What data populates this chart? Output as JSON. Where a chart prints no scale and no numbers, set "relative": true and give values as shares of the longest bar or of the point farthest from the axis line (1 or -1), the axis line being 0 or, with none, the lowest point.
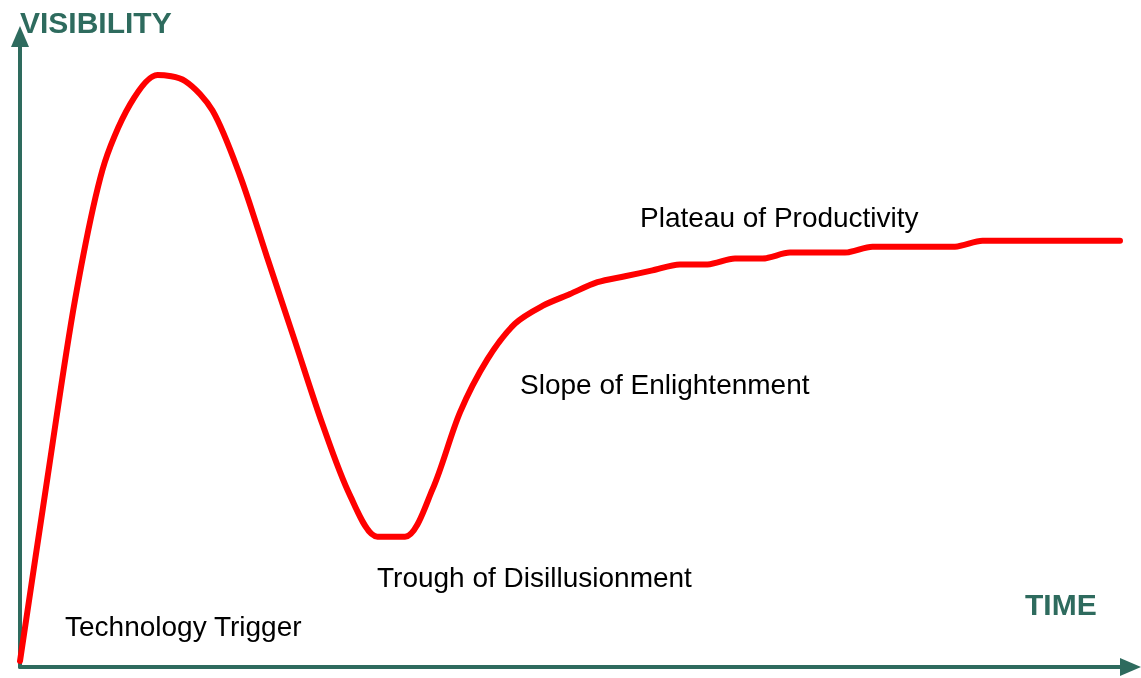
{
  "chart_data": {
    "type": "line",
    "relative": true,
    "xlabel": "TIME",
    "ylabel": "VISIBILITY",
    "categories": [
      null,
      null,
      null,
      null,
      null,
      null,
      null,
      null,
      null,
      null,
      null,
      null,
      null,
      null,
      null,
      null,
      null,
      null,
      null,
      null,
      null,
      null,
      null,
      null,
      null,
      null,
      null,
      null,
      null,
      null,
      null,
      null,
      null,
      null,
      null,
      null,
      null,
      null,
      null,
      null,
      null
    ],
    "series": [
      {
        "color": "#ff0000",
        "values": [
          0.01,
          0.32,
          0.62,
          0.84,
          0.95,
          1,
          0.99,
          0.94,
          0.83,
          0.69,
          0.55,
          0.41,
          0.29,
          0.22,
          0.22,
          0.3,
          0.43,
          0.52,
          0.58,
          0.61,
          0.63,
          0.65,
          0.66,
          0.67,
          0.68,
          0.68,
          0.69,
          0.69,
          0.7,
          0.7,
          0.7,
          0.71,
          0.71,
          0.71,
          0.71,
          0.72,
          0.72,
          0.72,
          0.72,
          0.72,
          0.72
        ]
      }
    ],
    "annotations": [
      "Technology Trigger",
      "Trough of Disillusionment",
      "Slope of Enlightenment",
      "Plateau of Productivity"
    ],
    "grid": false,
    "marker": "none",
    "line_style": "solid"
  }
}
